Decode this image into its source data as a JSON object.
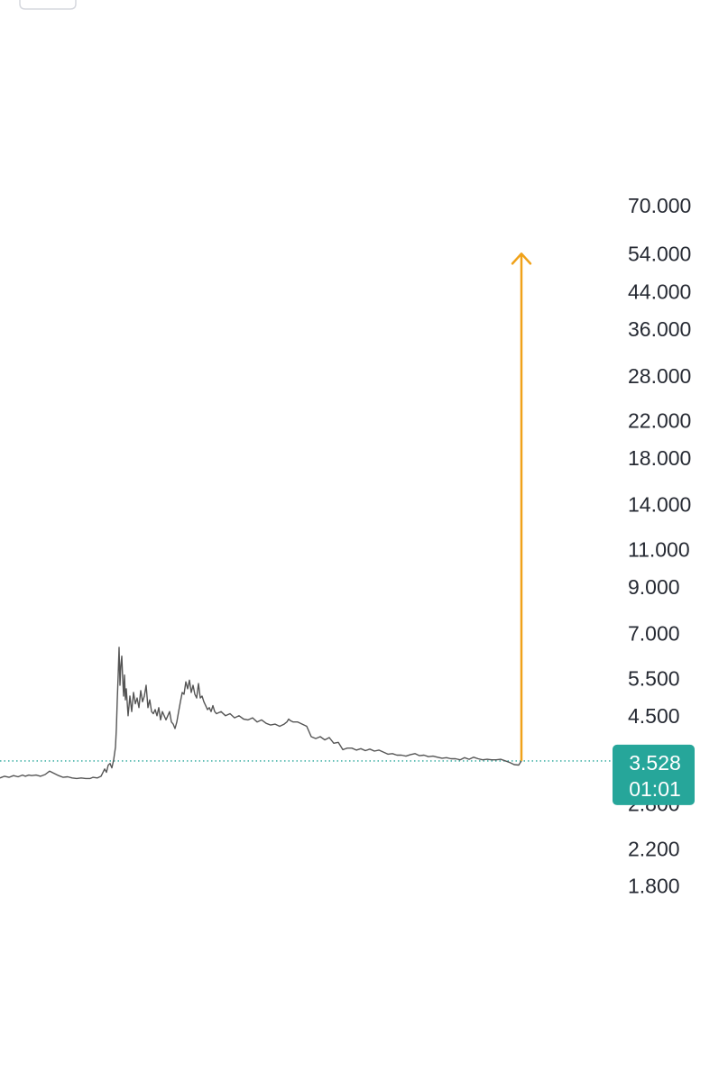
{
  "chart_data": {
    "type": "line",
    "scale": "log",
    "title": "",
    "xlabel": "",
    "ylabel": "",
    "ylim": [
      1.7,
      76
    ],
    "y_ticks": [
      "70.000",
      "54.000",
      "44.000",
      "36.000",
      "28.000",
      "22.000",
      "18.000",
      "14.000",
      "11.000",
      "9.000",
      "7.000",
      "5.500",
      "4.500",
      "2.800",
      "2.200",
      "1.800"
    ],
    "x": [
      0,
      5,
      10,
      15,
      20,
      25,
      28,
      32,
      35,
      40,
      45,
      50,
      55,
      60,
      65,
      70,
      75,
      80,
      85,
      90,
      95,
      100,
      103,
      108,
      112,
      116,
      118,
      120,
      122,
      124,
      126,
      128,
      129,
      130,
      131,
      132,
      133,
      134,
      135,
      136,
      137,
      138,
      139,
      140,
      142,
      144,
      146,
      148,
      150,
      152,
      154,
      156,
      158,
      160,
      162,
      164,
      166,
      168,
      170,
      172,
      174,
      176,
      178,
      180,
      182,
      184,
      186,
      188,
      190,
      192,
      194,
      196,
      198,
      200,
      202,
      204,
      206,
      208,
      210,
      212,
      214,
      216,
      218,
      220,
      222,
      224,
      226,
      228,
      230,
      232,
      234,
      236,
      238,
      240,
      245,
      250,
      255,
      260,
      265,
      270,
      275,
      280,
      285,
      290,
      295,
      300,
      305,
      310,
      315,
      318,
      320,
      322,
      325,
      330,
      335,
      340,
      345,
      350,
      355,
      360,
      365,
      370,
      375,
      380,
      385,
      390,
      395,
      400,
      405,
      410,
      415,
      420,
      425,
      430,
      435,
      440,
      445,
      450,
      455,
      460,
      465,
      470,
      475,
      480,
      485,
      490,
      495,
      500,
      505,
      510,
      515,
      520,
      525,
      530,
      535,
      540,
      545,
      550,
      555,
      560,
      565,
      570,
      575,
      578
    ],
    "series": [
      {
        "values": [
          3.22,
          3.25,
          3.23,
          3.26,
          3.24,
          3.27,
          3.25,
          3.27,
          3.26,
          3.27,
          3.25,
          3.28,
          3.34,
          3.3,
          3.26,
          3.23,
          3.24,
          3.22,
          3.21,
          3.22,
          3.21,
          3.21,
          3.23,
          3.22,
          3.25,
          3.38,
          3.32,
          3.45,
          3.48,
          3.4,
          3.55,
          3.8,
          4.2,
          4.9,
          5.6,
          6.5,
          5.3,
          5.9,
          6.2,
          5.5,
          5.0,
          5.6,
          4.9,
          5.2,
          4.5,
          5.0,
          4.6,
          5.1,
          4.8,
          4.95,
          4.7,
          5.15,
          4.85,
          5.0,
          5.3,
          4.7,
          4.9,
          4.6,
          4.55,
          4.65,
          4.5,
          4.7,
          4.4,
          4.6,
          4.5,
          4.4,
          4.5,
          4.6,
          4.35,
          4.3,
          4.2,
          4.35,
          4.6,
          4.85,
          5.1,
          5.05,
          5.4,
          5.2,
          5.45,
          5.1,
          5.3,
          5.05,
          4.95,
          5.35,
          4.95,
          5.0,
          4.85,
          4.75,
          4.65,
          4.7,
          4.6,
          4.75,
          4.6,
          4.55,
          4.6,
          4.5,
          4.55,
          4.45,
          4.5,
          4.42,
          4.4,
          4.45,
          4.35,
          4.4,
          4.32,
          4.28,
          4.3,
          4.25,
          4.3,
          4.35,
          4.42,
          4.38,
          4.35,
          4.35,
          4.3,
          4.25,
          4.02,
          3.98,
          4.02,
          3.95,
          4.0,
          3.88,
          3.9,
          3.75,
          3.78,
          3.78,
          3.74,
          3.77,
          3.73,
          3.76,
          3.72,
          3.74,
          3.7,
          3.66,
          3.67,
          3.64,
          3.64,
          3.62,
          3.65,
          3.67,
          3.63,
          3.64,
          3.61,
          3.62,
          3.6,
          3.58,
          3.59,
          3.57,
          3.57,
          3.55,
          3.59,
          3.56,
          3.6,
          3.57,
          3.55,
          3.56,
          3.55,
          3.55,
          3.56,
          3.53,
          3.5,
          3.46,
          3.45,
          3.528
        ],
        "color": "#555555"
      }
    ],
    "current_price": {
      "value": 3.528,
      "label": "3.528",
      "timer": "01:01",
      "color": "#26a69a"
    },
    "annotation": {
      "type": "arrow",
      "from": 3.528,
      "to": 54,
      "color": "#f0a21a"
    },
    "grid": false,
    "legend": "none"
  }
}
